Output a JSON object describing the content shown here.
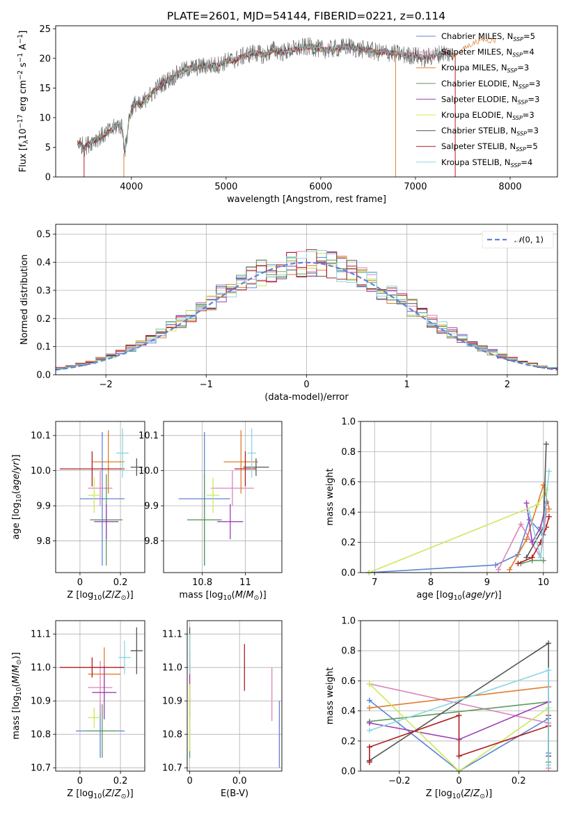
{
  "title": "PLATE=2601, MJD=54144, FIBERID=0221, z=0.114",
  "colors": {
    "Chabrier MILES": "#5e83d5",
    "Salpeter MILES": "#dc84b9",
    "Kroupa MILES": "#e07b2c",
    "Chabrier ELODIE": "#5c9a5c",
    "Salpeter ELODIE": "#9b3fb3",
    "Kroupa ELODIE": "#cce85a",
    "Chabrier STELIB": "#555555",
    "Salpeter STELIB": "#b01c1c",
    "Kroupa STELIB": "#88d6e0"
  },
  "chart_data": [
    {
      "id": "spectrum",
      "type": "line",
      "title": "PLATE=2601, MJD=54144, FIBERID=0221, z=0.114",
      "xlabel": "wavelength [Angstrom, rest frame]",
      "ylabel": "Flux [f_λ10^-17 erg cm^-2 s^-1 A^-1]",
      "xlim": [
        3200,
        8500
      ],
      "ylim": [
        0,
        25.5
      ],
      "xticks": [
        4000,
        5000,
        6000,
        7000,
        8000
      ],
      "yticks": [
        0,
        5,
        10,
        15,
        20,
        25
      ],
      "grid": false,
      "legend_position": "top-right",
      "legend": [
        "Chabrier MILES, N_SSP=5",
        "Salpeter MILES, N_SSP=4",
        "Kroupa MILES, N_SSP=3",
        "Chabrier ELODIE, N_SSP=3",
        "Salpeter ELODIE, N_SSP=3",
        "Kroupa ELODIE, N_SSP=3",
        "Chabrier STELIB, N_SSP=3",
        "Salpeter STELIB, N_SSP=5",
        "Kroupa STELIB, N_SSP=4"
      ],
      "spectrum_x": [
        3450,
        3500,
        3600,
        3700,
        3800,
        3850,
        3900,
        3930,
        3950,
        3970,
        4000,
        4050,
        4100,
        4150,
        4200,
        4300,
        4400,
        4500,
        4600,
        4700,
        4800,
        4900,
        5000,
        5100,
        5200,
        5300,
        5400,
        5500,
        5600,
        5700,
        5800,
        5900,
        6000,
        6100,
        6200,
        6300,
        6400,
        6500,
        6600,
        6700,
        6800,
        6900,
        7000,
        7100,
        7200,
        7300,
        7400,
        7500,
        7600,
        7700,
        7800
      ],
      "spectrum_y": [
        5.8,
        5.0,
        6.2,
        7.0,
        8.0,
        8.8,
        8.5,
        4.5,
        6.0,
        9.5,
        11.5,
        12.5,
        11.8,
        13.2,
        13.8,
        15.5,
        16.5,
        17.5,
        18.3,
        18.5,
        18.8,
        18.8,
        19.5,
        19.8,
        20.5,
        21.0,
        20.5,
        21.5,
        21.0,
        21.5,
        21.8,
        22.0,
        21.5,
        21.5,
        21.8,
        22.0,
        21.5,
        21.5,
        21.0,
        21.0,
        20.8,
        20.5,
        20.5,
        20.0,
        20.5,
        21.0,
        20.5,
        21.5,
        22.5,
        23.2,
        23.0
      ]
    },
    {
      "id": "residual-histogram",
      "type": "line",
      "xlabel": "(data-model)/error",
      "ylabel": "Normed distribution",
      "xlim": [
        -2.5,
        2.5
      ],
      "ylim": [
        0,
        0.535
      ],
      "xticks": [
        -2,
        -1,
        0,
        1,
        2
      ],
      "yticks": [
        0.0,
        0.1,
        0.2,
        0.3,
        0.4,
        0.5
      ],
      "grid": true,
      "legend_position": "top-right",
      "series": [
        {
          "name": "N(0,1)",
          "curve": "standard normal"
        }
      ],
      "bin_width": 0.1,
      "hist_bin_start": -2.5
    },
    {
      "id": "age-vs-z",
      "type": "scatter",
      "xlabel": "Z [log10(Z/Z⊙)]",
      "ylabel": "age  [log10(age/yr)]",
      "xlim": [
        -0.12,
        0.32
      ],
      "ylim": [
        9.71,
        10.14
      ],
      "xticks": [
        0.0,
        0.2
      ],
      "yticks": [
        9.8,
        9.9,
        10.0,
        10.1
      ],
      "grid": true,
      "points": [
        {
          "model": "Chabrier MILES",
          "x": 0.11,
          "xerr": 0.11,
          "y": 9.92,
          "yerr": 0.19
        },
        {
          "model": "Salpeter MILES",
          "x": 0.1,
          "xerr": 0.06,
          "y": 9.95,
          "yerr": 0.05
        },
        {
          "model": "Kroupa MILES",
          "x": 0.14,
          "xerr": 0.08,
          "y": 10.025,
          "yerr": 0.09
        },
        {
          "model": "Chabrier ELODIE",
          "x": 0.13,
          "xerr": 0.08,
          "y": 9.86,
          "yerr": 0.13
        },
        {
          "model": "Salpeter ELODIE",
          "x": 0.13,
          "xerr": 0.06,
          "y": 9.855,
          "yerr": 0.05
        },
        {
          "model": "Kroupa ELODIE",
          "x": 0.07,
          "xerr": 0.03,
          "y": 9.93,
          "yerr": 0.05
        },
        {
          "model": "Chabrier STELIB",
          "x": 0.28,
          "xerr": 0.03,
          "y": 10.01,
          "yerr": 0.025
        },
        {
          "model": "Salpeter STELIB",
          "x": 0.06,
          "xerr": 0.16,
          "y": 10.005,
          "yerr": 0.05
        },
        {
          "model": "Kroupa STELIB",
          "x": 0.21,
          "xerr": 0.03,
          "y": 10.05,
          "yerr": 0.07
        }
      ]
    },
    {
      "id": "age-vs-mass",
      "type": "scatter",
      "xlabel": "mass [log10(M/M⊙)]",
      "xlim": [
        10.62,
        11.17
      ],
      "ylim": [
        9.71,
        10.14
      ],
      "xticks": [
        10.8,
        11.0
      ],
      "yticks": [
        9.8,
        9.9,
        10.0,
        10.1
      ],
      "grid": true,
      "points": [
        {
          "model": "Chabrier MILES",
          "x": 10.81,
          "xerr": 0.12,
          "y": 9.92,
          "yerr": 0.19
        },
        {
          "model": "Salpeter MILES",
          "x": 10.94,
          "xerr": 0.1,
          "y": 9.95,
          "yerr": 0.05
        },
        {
          "model": "Kroupa MILES",
          "x": 10.98,
          "xerr": 0.08,
          "y": 10.025,
          "yerr": 0.09
        },
        {
          "model": "Chabrier ELODIE",
          "x": 10.81,
          "xerr": 0.08,
          "y": 9.86,
          "yerr": 0.13
        },
        {
          "model": "Salpeter ELODIE",
          "x": 10.93,
          "xerr": 0.06,
          "y": 9.855,
          "yerr": 0.05
        },
        {
          "model": "Kroupa ELODIE",
          "x": 10.85,
          "xerr": 0.03,
          "y": 9.93,
          "yerr": 0.05
        },
        {
          "model": "Chabrier STELIB",
          "x": 11.05,
          "xerr": 0.06,
          "y": 10.01,
          "yerr": 0.025
        },
        {
          "model": "Salpeter STELIB",
          "x": 11.0,
          "xerr": 0.05,
          "y": 10.005,
          "yerr": 0.05
        },
        {
          "model": "Kroupa STELIB",
          "x": 11.03,
          "xerr": 0.02,
          "y": 10.05,
          "yerr": 0.07
        }
      ]
    },
    {
      "id": "weight-vs-age",
      "type": "line",
      "xlabel": "age  [log10(age/yr)]",
      "ylabel": "mass weight",
      "xlim": [
        6.75,
        10.25
      ],
      "ylim": [
        0,
        1.0
      ],
      "xticks": [
        7,
        8,
        9,
        10
      ],
      "yticks": [
        0.0,
        0.2,
        0.4,
        0.6,
        0.8,
        1.0
      ],
      "grid": true,
      "series": [
        {
          "model": "Chabrier MILES",
          "x": [
            6.9,
            9.15,
            9.55,
            9.75,
            10.0,
            10.05
          ],
          "y": [
            0.0,
            0.05,
            0.12,
            0.35,
            0.25,
            0.47
          ]
        },
        {
          "model": "Salpeter MILES",
          "x": [
            9.2,
            9.6,
            9.95,
            10.05
          ],
          "y": [
            0.02,
            0.32,
            0.1,
            0.4
          ]
        },
        {
          "model": "Kroupa MILES",
          "x": [
            9.4,
            9.7,
            10.0,
            10.1
          ],
          "y": [
            0.02,
            0.22,
            0.58,
            0.42
          ]
        },
        {
          "model": "Chabrier ELODIE",
          "x": [
            9.6,
            9.8,
            10.0
          ],
          "y": [
            0.06,
            0.08,
            0.08
          ]
        },
        {
          "model": "Salpeter ELODIE",
          "x": [
            9.7,
            9.8,
            9.95,
            10.05
          ],
          "y": [
            0.46,
            0.2,
            0.3,
            0.46
          ]
        },
        {
          "model": "Kroupa ELODIE",
          "x": [
            6.9,
            9.9,
            10.05
          ],
          "y": [
            0.0,
            0.45,
            0.55
          ]
        },
        {
          "model": "Chabrier STELIB",
          "x": [
            9.7,
            10.0,
            10.05
          ],
          "y": [
            0.1,
            0.3,
            0.85
          ]
        },
        {
          "model": "Salpeter STELIB",
          "x": [
            9.55,
            9.8,
            9.95,
            10.05,
            10.1
          ],
          "y": [
            0.06,
            0.1,
            0.2,
            0.3,
            0.37
          ]
        },
        {
          "model": "Kroupa STELIB",
          "x": [
            9.75,
            9.95,
            10.0,
            10.1
          ],
          "y": [
            0.4,
            0.1,
            0.3,
            0.67
          ]
        }
      ]
    },
    {
      "id": "mass-vs-z",
      "type": "scatter",
      "xlabel": "Z [log10(Z/Z⊙)]",
      "ylabel": "mass [log10(M/M⊙)]",
      "xlim": [
        -0.12,
        0.32
      ],
      "ylim": [
        10.69,
        11.14
      ],
      "xticks": [
        0.0,
        0.2
      ],
      "yticks": [
        10.7,
        10.8,
        10.9,
        11.0,
        11.1
      ],
      "grid": true,
      "points": [
        {
          "model": "Chabrier MILES",
          "x": 0.1,
          "xerr": 0.12,
          "y": 10.81,
          "yerr": 0.08
        },
        {
          "model": "Salpeter MILES",
          "x": 0.1,
          "xerr": 0.06,
          "y": 10.94,
          "yerr": 0.08
        },
        {
          "model": "Kroupa MILES",
          "x": 0.12,
          "xerr": 0.08,
          "y": 10.98,
          "yerr": 0.08
        },
        {
          "model": "Chabrier ELODIE",
          "x": 0.11,
          "xerr": 0.08,
          "y": 10.81,
          "yerr": 0.08
        },
        {
          "model": "Salpeter ELODIE",
          "x": 0.12,
          "xerr": 0.06,
          "y": 10.925,
          "yerr": 0.08
        },
        {
          "model": "Kroupa ELODIE",
          "x": 0.07,
          "xerr": 0.03,
          "y": 10.85,
          "yerr": 0.03
        },
        {
          "model": "Chabrier STELIB",
          "x": 0.28,
          "xerr": 0.03,
          "y": 11.05,
          "yerr": 0.07
        },
        {
          "model": "Salpeter STELIB",
          "x": 0.06,
          "xerr": 0.16,
          "y": 11.0,
          "yerr": 0.03
        },
        {
          "model": "Kroupa STELIB",
          "x": 0.22,
          "xerr": 0.03,
          "y": 11.03,
          "yerr": 0.05
        }
      ]
    },
    {
      "id": "mass-vs-ebv",
      "type": "scatter",
      "xlabel": "E(B-V)",
      "xlim": [
        -0.001,
        0.037
      ],
      "ylim": [
        10.69,
        11.14
      ],
      "xticks": [
        0.0,
        0.02
      ],
      "yticks": [
        10.7,
        10.8,
        10.9,
        11.0,
        11.1
      ],
      "grid": true,
      "points": [
        {
          "model": "Chabrier MILES",
          "x": 0.036,
          "y": 10.8,
          "yerr": 0.1
        },
        {
          "model": "Salpeter MILES",
          "x": 0.033,
          "y": 10.92,
          "yerr": 0.08
        },
        {
          "model": "Kroupa MILES",
          "x": 0.0,
          "y": 10.95,
          "yerr": 0.1
        },
        {
          "model": "Chabrier ELODIE",
          "x": 0.0,
          "y": 10.8,
          "yerr": 0.07
        },
        {
          "model": "Salpeter ELODIE",
          "x": 0.0,
          "y": 10.92,
          "yerr": 0.06
        },
        {
          "model": "Kroupa ELODIE",
          "x": 0.0,
          "y": 10.85,
          "yerr": 0.1
        },
        {
          "model": "Chabrier STELIB",
          "x": 0.0,
          "y": 11.05,
          "yerr": 0.07
        },
        {
          "model": "Salpeter STELIB",
          "x": 0.022,
          "y": 11.0,
          "yerr": 0.07
        },
        {
          "model": "Kroupa STELIB",
          "x": 0.0,
          "y": 11.04,
          "yerr": 0.06
        }
      ]
    },
    {
      "id": "weight-vs-z",
      "type": "line",
      "xlabel": "Z [log10(Z/Z⊙)]",
      "ylabel": "mass weight",
      "xlim": [
        -0.33,
        0.33
      ],
      "ylim": [
        0,
        1.0
      ],
      "xticks": [
        -0.2,
        0.0,
        0.2
      ],
      "yticks": [
        0.0,
        0.2,
        0.4,
        0.6,
        0.8,
        1.0
      ],
      "grid": true,
      "series": [
        {
          "model": "Chabrier MILES",
          "x": [
            -0.3,
            0.0,
            0.3,
            0.3
          ],
          "y": [
            0.47,
            0.0,
            0.35,
            0.12
          ]
        },
        {
          "model": "Salpeter MILES",
          "x": [
            -0.3,
            0.3,
            0.3
          ],
          "y": [
            0.58,
            0.32,
            0.02
          ]
        },
        {
          "model": "Kroupa MILES",
          "x": [
            -0.3,
            0.3
          ],
          "y": [
            0.42,
            0.56
          ]
        },
        {
          "model": "Chabrier ELODIE",
          "x": [
            -0.3,
            0.3,
            0.3
          ],
          "y": [
            0.33,
            0.46,
            0.06
          ]
        },
        {
          "model": "Salpeter ELODIE",
          "x": [
            -0.3,
            0.0,
            0.3
          ],
          "y": [
            0.32,
            0.21,
            0.46
          ]
        },
        {
          "model": "Kroupa ELODIE",
          "x": [
            -0.3,
            0.0,
            0.3
          ],
          "y": [
            0.58,
            0.0,
            0.42
          ]
        },
        {
          "model": "Chabrier STELIB",
          "x": [
            -0.3,
            0.3,
            0.3
          ],
          "y": [
            0.07,
            0.85,
            0.1
          ]
        },
        {
          "model": "Salpeter STELIB",
          "x": [
            -0.3,
            -0.3,
            0.0,
            0.0,
            0.3,
            0.3
          ],
          "y": [
            0.06,
            0.16,
            0.37,
            0.1,
            0.3,
            0.37
          ]
        },
        {
          "model": "Kroupa STELIB",
          "x": [
            -0.3,
            0.3,
            0.3
          ],
          "y": [
            0.27,
            0.67,
            0.04
          ]
        }
      ]
    }
  ]
}
